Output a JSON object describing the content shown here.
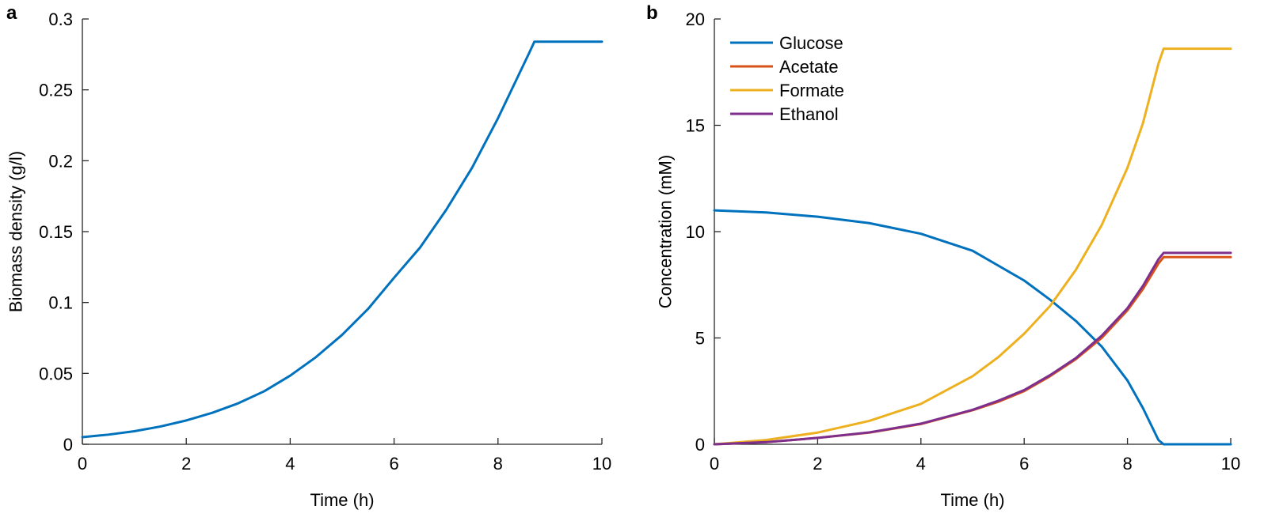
{
  "chart_data": [
    {
      "panel_label": "a",
      "type": "line",
      "title": "",
      "xlabel": "Time (h)",
      "ylabel": "Biomass density (g/l)",
      "xlim": [
        0,
        10
      ],
      "ylim": [
        0,
        0.3
      ],
      "xticks": [
        0,
        2,
        4,
        6,
        8,
        10
      ],
      "xtick_labels": [
        "0",
        "2",
        "4",
        "6",
        "8",
        "10"
      ],
      "yticks": [
        0,
        0.05,
        0.1,
        0.15,
        0.2,
        0.25,
        0.3
      ],
      "ytick_labels": [
        "0",
        "0.05",
        "0.1",
        "0.15",
        "0.2",
        "0.25",
        "0.3"
      ],
      "series": [
        {
          "name": "Biomass",
          "color": "#0072BD",
          "x": [
            0,
            0.5,
            1,
            1.5,
            2,
            2.5,
            3,
            3.5,
            4,
            4.5,
            5,
            5.5,
            6,
            6.5,
            7,
            7.5,
            8,
            8.3,
            8.6,
            8.7,
            9,
            9.5,
            10
          ],
          "y": [
            0.005,
            0.0068,
            0.0092,
            0.0125,
            0.0168,
            0.0222,
            0.0289,
            0.0374,
            0.0484,
            0.0616,
            0.0772,
            0.0955,
            0.1175,
            0.1388,
            0.1652,
            0.195,
            0.23,
            0.253,
            0.276,
            0.284,
            0.284,
            0.284,
            0.284
          ]
        }
      ]
    },
    {
      "panel_label": "b",
      "type": "line",
      "title": "",
      "xlabel": "Time (h)",
      "ylabel": "Concentration (mM)",
      "xlim": [
        0,
        10
      ],
      "ylim": [
        0,
        20
      ],
      "xticks": [
        0,
        2,
        4,
        6,
        8,
        10
      ],
      "xtick_labels": [
        "0",
        "2",
        "4",
        "6",
        "8",
        "10"
      ],
      "yticks": [
        0,
        5,
        10,
        15,
        20
      ],
      "ytick_labels": [
        "0",
        "5",
        "10",
        "15",
        "20"
      ],
      "legend_position": "top-left",
      "series": [
        {
          "name": "Glucose",
          "color": "#0072BD",
          "x": [
            0,
            1,
            2,
            3,
            4,
            5,
            6,
            6.5,
            7,
            7.5,
            8,
            8.3,
            8.6,
            8.7,
            9,
            10
          ],
          "y": [
            11.0,
            10.9,
            10.7,
            10.4,
            9.9,
            9.1,
            7.7,
            6.8,
            5.8,
            4.6,
            3.0,
            1.7,
            0.2,
            0.0,
            0.0,
            0.0
          ]
        },
        {
          "name": "Acetate",
          "color": "#D95319",
          "x": [
            0,
            1,
            2,
            3,
            4,
            5,
            5.5,
            6,
            6.5,
            7,
            7.5,
            8,
            8.3,
            8.6,
            8.7,
            9,
            10
          ],
          "y": [
            0.0,
            0.1,
            0.3,
            0.55,
            0.95,
            1.6,
            2.0,
            2.5,
            3.2,
            4.0,
            5.0,
            6.3,
            7.3,
            8.5,
            8.8,
            8.8,
            8.8
          ]
        },
        {
          "name": "Formate",
          "color": "#EDB120",
          "x": [
            0,
            1,
            2,
            3,
            4,
            5,
            5.5,
            6,
            6.5,
            7,
            7.5,
            8,
            8.3,
            8.6,
            8.7,
            9,
            10
          ],
          "y": [
            0.0,
            0.2,
            0.55,
            1.1,
            1.9,
            3.2,
            4.1,
            5.2,
            6.5,
            8.2,
            10.3,
            13.0,
            15.1,
            17.9,
            18.6,
            18.6,
            18.6
          ]
        },
        {
          "name": "Ethanol",
          "color": "#7E2F8E",
          "x": [
            0,
            1,
            2,
            3,
            4,
            5,
            5.5,
            6,
            6.5,
            7,
            7.5,
            8,
            8.3,
            8.6,
            8.7,
            9,
            10
          ],
          "y": [
            0.0,
            0.1,
            0.3,
            0.56,
            0.97,
            1.62,
            2.05,
            2.55,
            3.25,
            4.05,
            5.1,
            6.4,
            7.45,
            8.7,
            9.0,
            9.0,
            9.0
          ]
        }
      ]
    }
  ]
}
